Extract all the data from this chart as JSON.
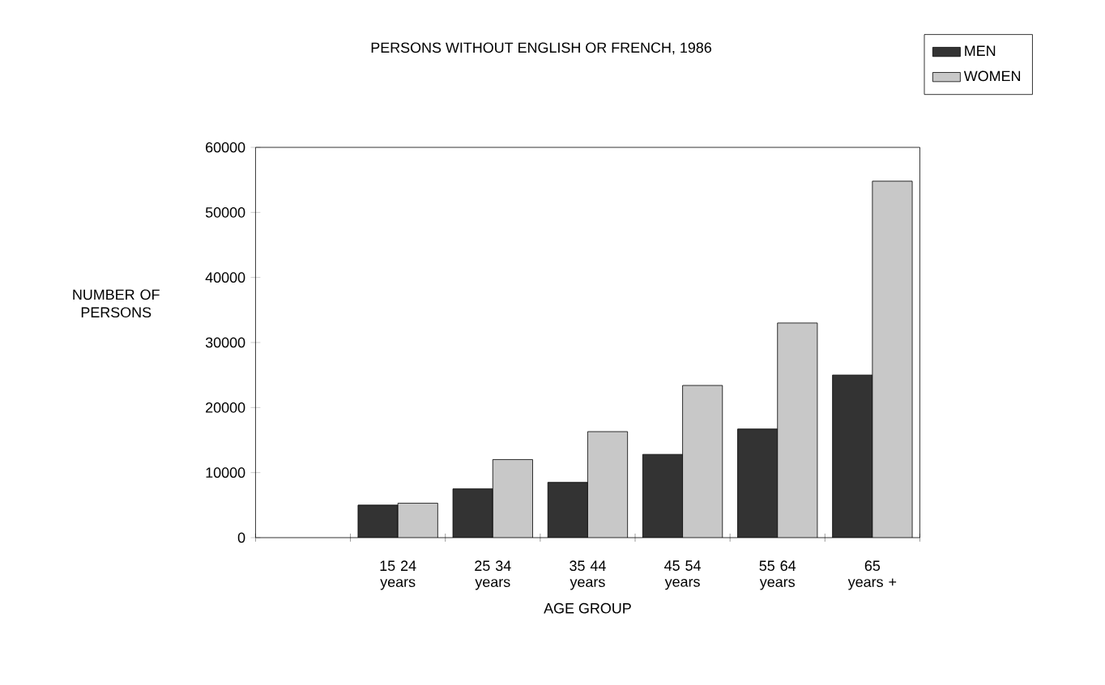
{
  "chart_data": {
    "type": "bar",
    "title": "PERSONS WITHOUT ENGLISH OR FRENCH, 1986",
    "xlabel": "AGE GROUP",
    "ylabel": "NUMBER OF PERSONS",
    "categories": [
      null,
      "15 24 years",
      "25 34 years",
      "35 44 years",
      "45 54 years",
      "55 64 years",
      "65 years +"
    ],
    "series": [
      {
        "name": "MEN",
        "color": "#333333",
        "values": [
          null,
          5000,
          7500,
          8500,
          12800,
          16700,
          25000
        ]
      },
      {
        "name": "WOMEN",
        "color": "#c8c8c8",
        "values": [
          null,
          5300,
          12000,
          16300,
          23400,
          33000,
          54800
        ]
      }
    ],
    "ylim": [
      0,
      60000
    ],
    "yticks": [
      0,
      10000,
      20000,
      30000,
      40000,
      50000,
      60000
    ],
    "legend": "top right"
  }
}
